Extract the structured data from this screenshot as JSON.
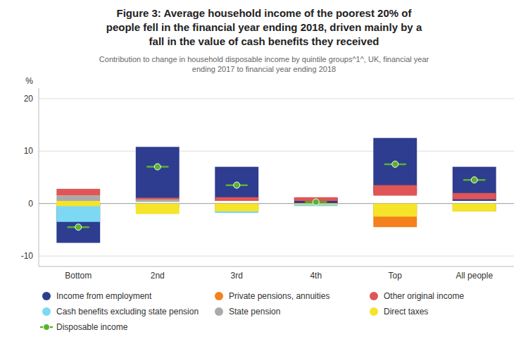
{
  "chart_data": {
    "type": "bar",
    "title": "Figure 3: Average household income of the poorest 20% of\npeople fell in the financial year ending 2018, driven mainly by a\nfall in the value of cash benefits they received",
    "subtitle": "Contribution to change in household disposable income by quintile groups^1^, UK, financial year\nending 2017 to financial year ending 2018",
    "y_label": "%",
    "categories": [
      "Bottom",
      "2nd",
      "3rd",
      "4th",
      "Top",
      "All people"
    ],
    "ylim": [
      -12,
      22
    ],
    "yticks": [
      -10,
      0,
      10,
      20
    ],
    "grid": true,
    "legend": "bottom",
    "series": [
      {
        "name": "Income from employment",
        "color": "#2E3D8F",
        "values": [
          [
            -7.5,
            0
          ],
          [
            1.0,
            10.8
          ],
          [
            0.5,
            7.0
          ],
          [
            0.0,
            1.0
          ],
          [
            2.0,
            12.5
          ],
          [
            0.5,
            7.0
          ]
        ]
      },
      {
        "name": "Private pensions, annuities",
        "color": "#F4801E",
        "values": [
          [
            -0.4,
            0
          ],
          [
            -0.7,
            0
          ],
          [
            -1.5,
            0
          ],
          [
            -0.2,
            0
          ],
          [
            -4.5,
            0
          ],
          [
            -1.5,
            0
          ]
        ]
      },
      {
        "name": "Other original income",
        "color": "#E05555",
        "values": [
          [
            1.5,
            2.8
          ],
          [
            0.5,
            1.1
          ],
          [
            0.5,
            1.2
          ],
          [
            0.5,
            1.2
          ],
          [
            1.5,
            3.5
          ],
          [
            0.8,
            2.0
          ]
        ]
      },
      {
        "name": "Cash benefits excluding state pension",
        "color": "#7DD8F4",
        "values": [
          [
            -3.5,
            0.0
          ],
          [
            -0.7,
            0.0
          ],
          [
            -1.8,
            0.0
          ],
          [
            -0.5,
            0.0
          ],
          [
            -1.0,
            0.0
          ],
          [
            -1.2,
            0.0
          ]
        ]
      },
      {
        "name": "State pension",
        "color": "#AAAAAA",
        "values": [
          [
            0.5,
            1.5
          ],
          [
            0.3,
            0.8
          ],
          [
            -0.5,
            0.0
          ],
          [
            -0.2,
            0.0
          ],
          [
            -2.0,
            -0.5
          ],
          [
            -0.5,
            0.0
          ]
        ]
      },
      {
        "name": "Direct taxes",
        "color": "#F5E429",
        "values": [
          [
            -0.5,
            0.5
          ],
          [
            -2.0,
            0.0
          ],
          [
            -1.5,
            0.0
          ],
          [
            -0.2,
            0.0
          ],
          [
            -2.5,
            0.0
          ],
          [
            -1.5,
            0.0
          ]
        ]
      },
      {
        "name": "Disposable income",
        "type": "scatter",
        "marker": "circle",
        "color": "#5AB22E",
        "values": [
          -4.5,
          7.0,
          3.5,
          0.3,
          7.5,
          4.5
        ]
      }
    ]
  }
}
